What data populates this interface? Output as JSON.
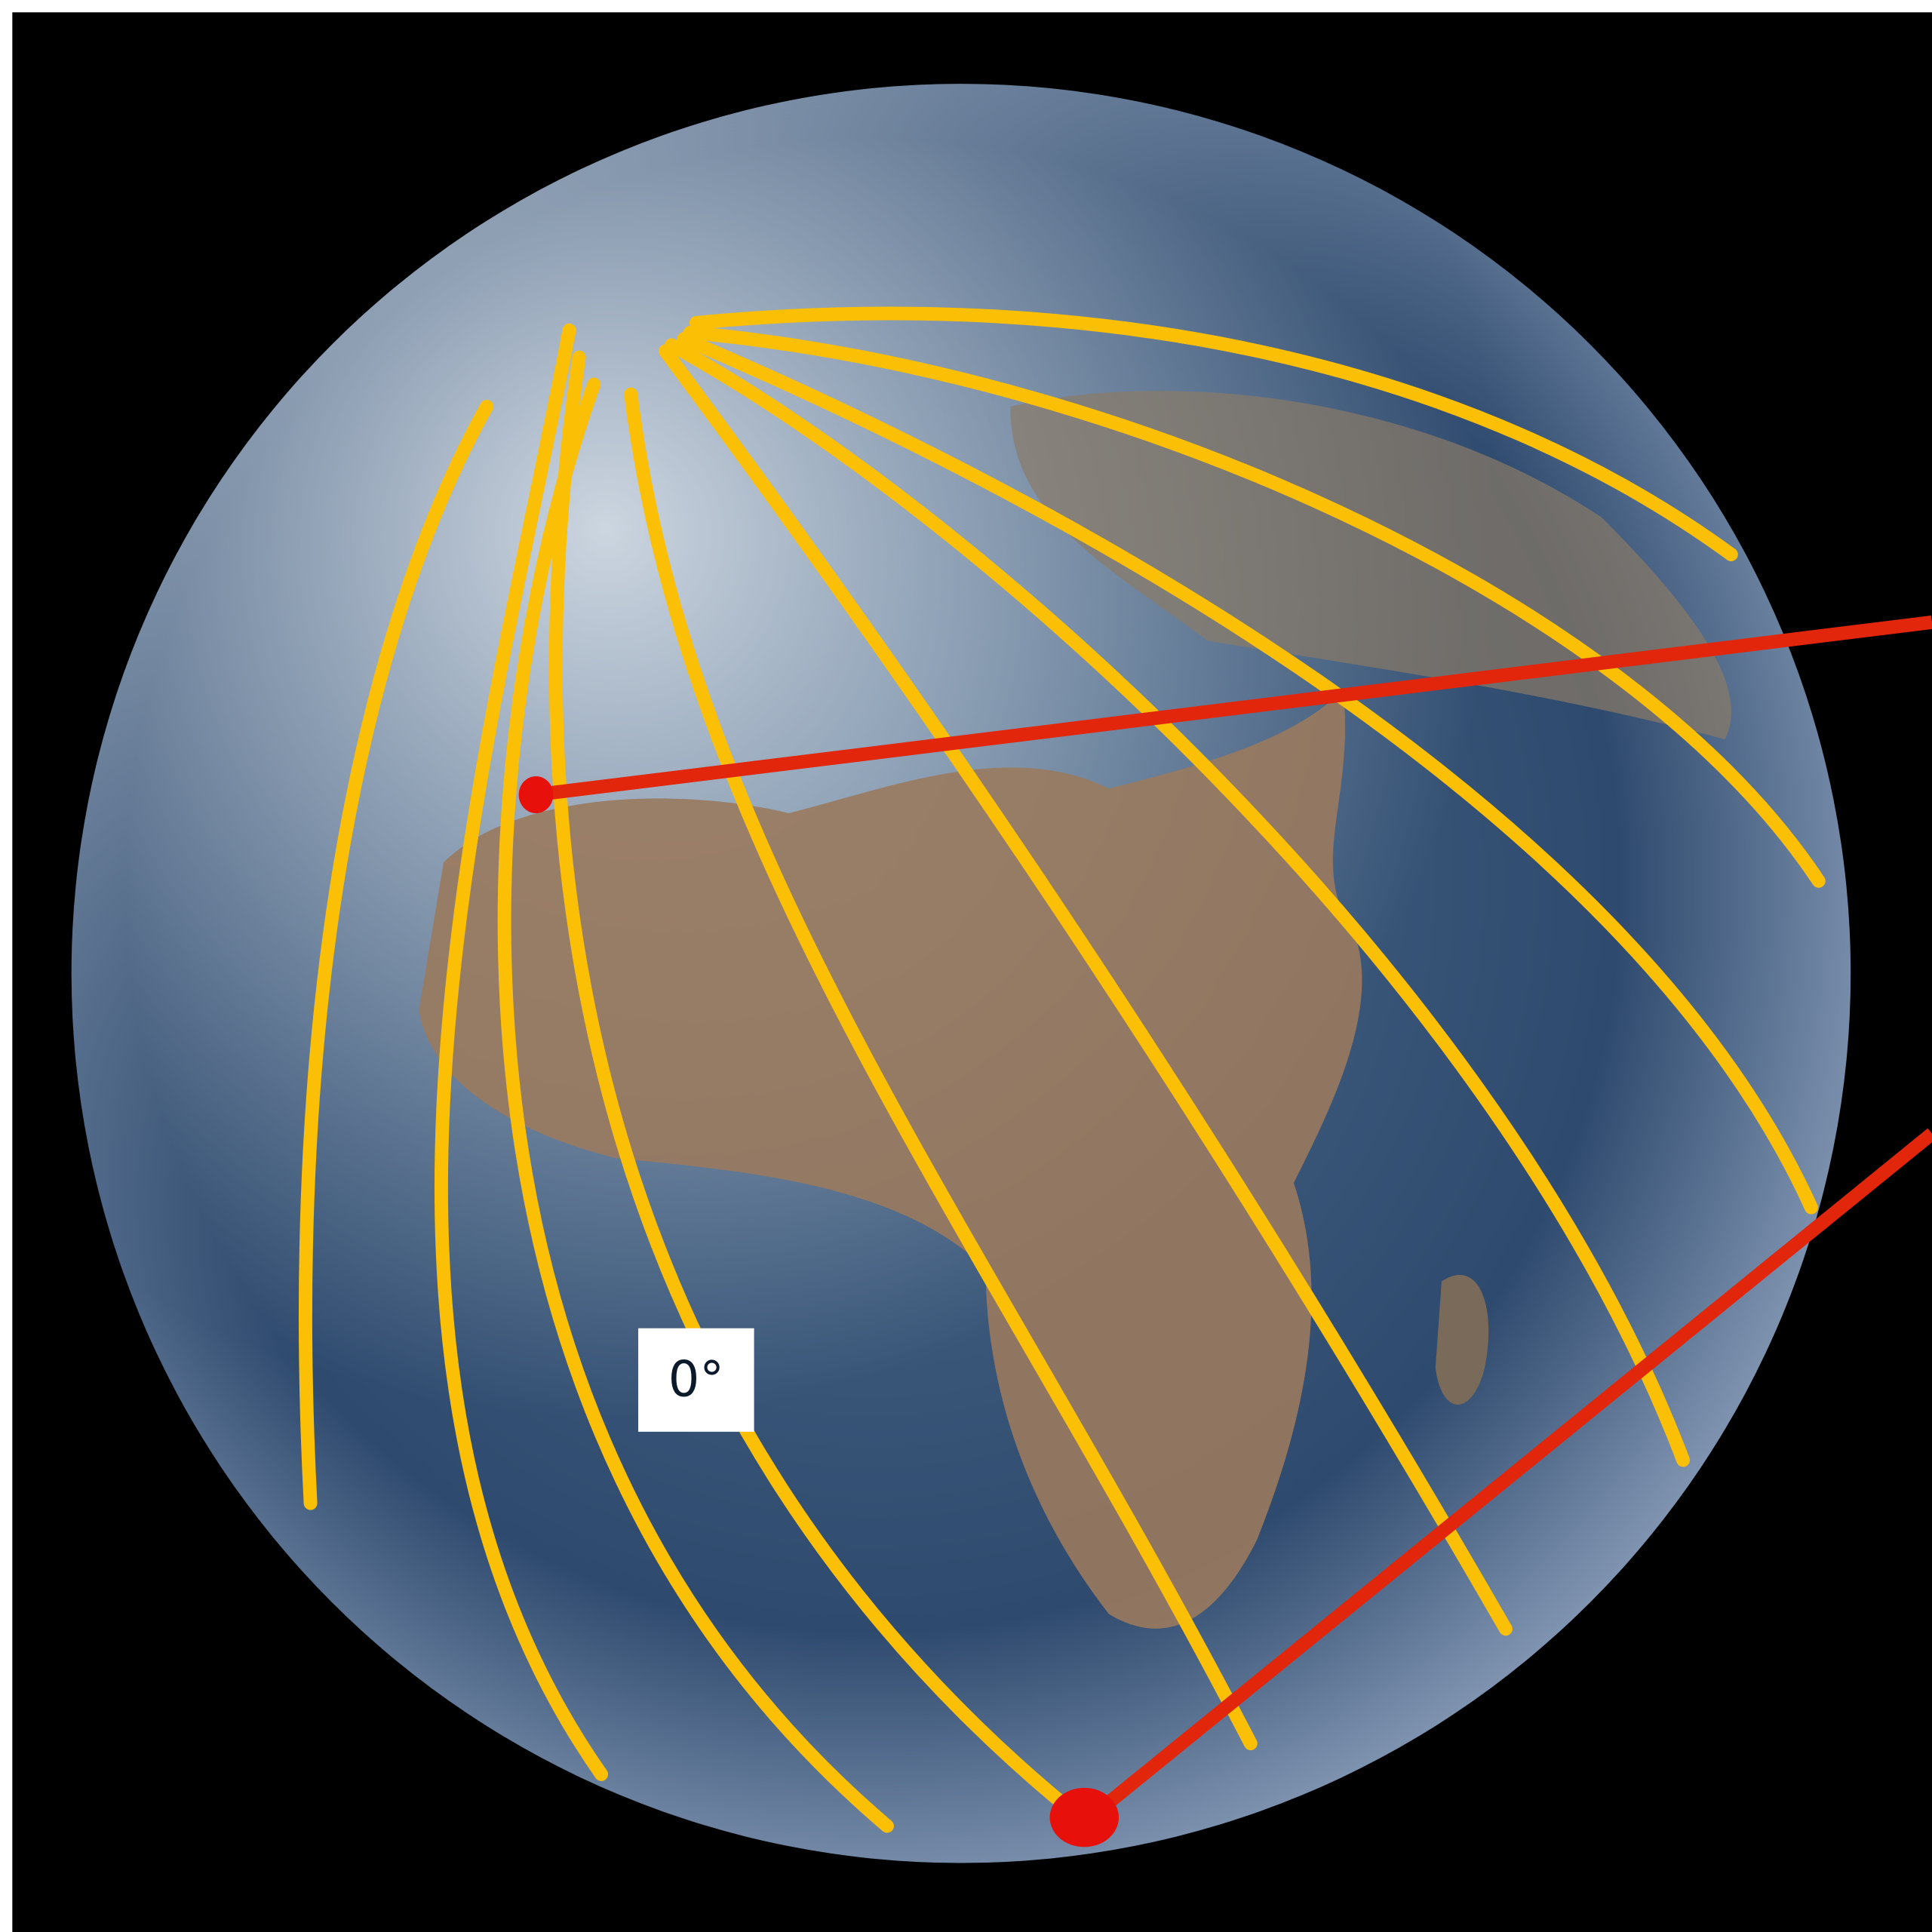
{
  "label": {
    "text": "0°"
  }
}
